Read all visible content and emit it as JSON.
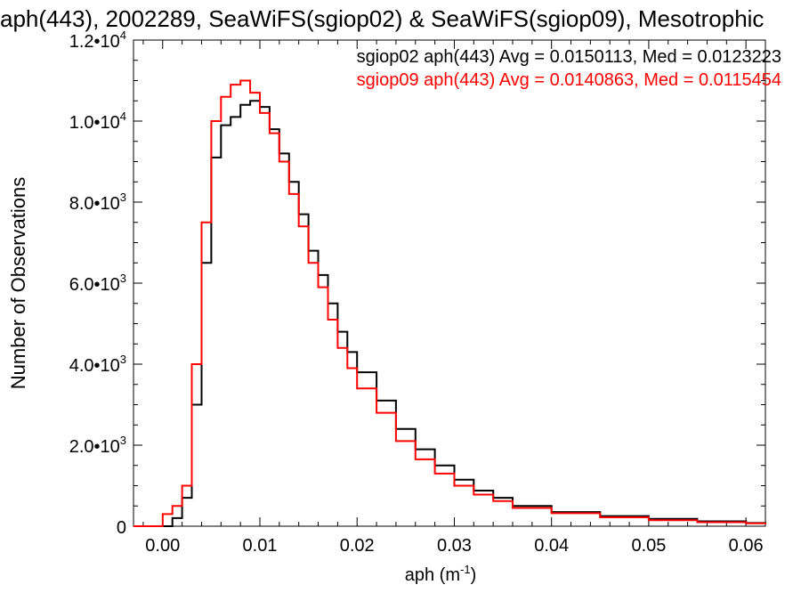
{
  "chart_data": {
    "type": "line",
    "title": "aph(443), 2002289, SeaWiFS(sgiop02) & SeaWiFS(sgiop09), Mesotrophic",
    "xlabel": "aph (m",
    "xlabel_sup": "-1",
    "xlabel_tail": ")",
    "ylabel": "Number of Observations",
    "xlim": [
      -0.003,
      0.062
    ],
    "ylim": [
      0,
      12000
    ],
    "x_ticks": [
      0.0,
      0.01,
      0.02,
      0.03,
      0.04,
      0.05,
      0.06
    ],
    "x_tick_labels": [
      "0.00",
      "0.01",
      "0.02",
      "0.03",
      "0.04",
      "0.05",
      "0.06"
    ],
    "y_ticks": [
      {
        "value": 0,
        "mantissa": "0",
        "exp": ""
      },
      {
        "value": 2000,
        "mantissa": "2.0•10",
        "exp": "3"
      },
      {
        "value": 4000,
        "mantissa": "4.0•10",
        "exp": "3"
      },
      {
        "value": 6000,
        "mantissa": "6.0•10",
        "exp": "3"
      },
      {
        "value": 8000,
        "mantissa": "8.0•10",
        "exp": "3"
      },
      {
        "value": 10000,
        "mantissa": "1.0•10",
        "exp": "4"
      },
      {
        "value": 12000,
        "mantissa": "1.2•10",
        "exp": "4"
      }
    ],
    "grid": false,
    "legend_position": "top-right",
    "series": [
      {
        "name": "sgiop02 aph(443) Avg = 0.0150113, Med = 0.0123223",
        "color": "#000000",
        "x": [
          -0.003,
          0.0,
          0.001,
          0.002,
          0.003,
          0.004,
          0.005,
          0.006,
          0.007,
          0.008,
          0.009,
          0.01,
          0.011,
          0.012,
          0.013,
          0.014,
          0.015,
          0.016,
          0.017,
          0.018,
          0.019,
          0.02,
          0.022,
          0.024,
          0.026,
          0.028,
          0.03,
          0.032,
          0.034,
          0.036,
          0.04,
          0.045,
          0.05,
          0.055,
          0.06,
          0.062
        ],
        "y": [
          0,
          0,
          200,
          700,
          3000,
          6500,
          9100,
          9900,
          10100,
          10400,
          10500,
          10350,
          9800,
          9200,
          8500,
          7700,
          6800,
          6200,
          5500,
          4800,
          4300,
          3800,
          3100,
          2400,
          1900,
          1500,
          1150,
          880,
          700,
          500,
          350,
          250,
          180,
          120,
          80,
          60
        ]
      },
      {
        "name": "sgiop09 aph(443) Avg = 0.0140863, Med = 0.0115454",
        "color": "#ff0000",
        "x": [
          -0.003,
          0.0,
          0.001,
          0.002,
          0.003,
          0.004,
          0.005,
          0.006,
          0.007,
          0.008,
          0.009,
          0.01,
          0.011,
          0.012,
          0.013,
          0.014,
          0.015,
          0.016,
          0.017,
          0.018,
          0.019,
          0.02,
          0.022,
          0.024,
          0.026,
          0.028,
          0.03,
          0.032,
          0.034,
          0.036,
          0.04,
          0.045,
          0.05,
          0.055,
          0.06,
          0.062
        ],
        "y": [
          0,
          300,
          500,
          1000,
          4000,
          7500,
          10000,
          10600,
          10900,
          11000,
          10700,
          10200,
          9700,
          9000,
          8200,
          7400,
          6500,
          5900,
          5100,
          4400,
          3900,
          3400,
          2800,
          2100,
          1650,
          1300,
          1000,
          780,
          620,
          450,
          320,
          220,
          150,
          100,
          70,
          50
        ]
      }
    ]
  }
}
